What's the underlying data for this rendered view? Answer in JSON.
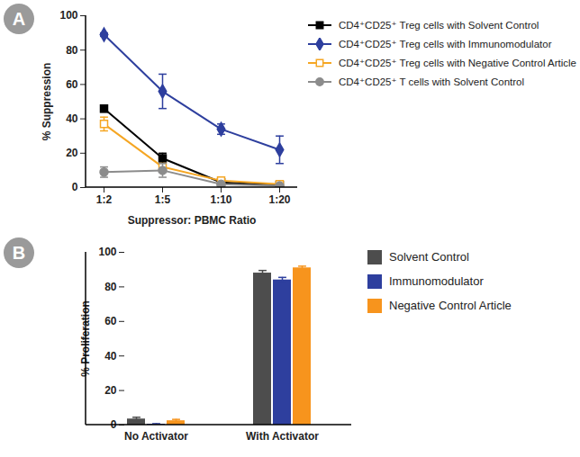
{
  "chart_data": [
    {
      "type": "line",
      "title": "A",
      "categories": [
        "1:2",
        "1:5",
        "1:10",
        "1:20"
      ],
      "xlabel": "Suppressor: PBMC Ratio",
      "ylabel": "% Suppression",
      "ylim": [
        0,
        100
      ],
      "yticks": [
        0,
        20,
        40,
        60,
        80,
        100
      ],
      "legend": "right",
      "series": [
        {
          "name": "CD4⁺CD25⁺ Treg cells with Solvent Control",
          "color": "#000000",
          "marker": "square",
          "values": [
            46,
            17,
            3,
            1.5
          ],
          "errors": [
            2,
            3,
            1,
            1
          ]
        },
        {
          "name": "CD4⁺CD25⁺ Treg cells with Immunomodulator",
          "color": "#2e3f9e",
          "marker": "diamond",
          "values": [
            89,
            56,
            34,
            22
          ],
          "errors": [
            1,
            10,
            3,
            8
          ]
        },
        {
          "name": "CD4⁺CD25⁺ Treg cells with Negative Control Article",
          "color": "#f5a623",
          "marker": "open_square",
          "values": [
            37,
            12,
            4,
            2
          ],
          "errors": [
            4,
            2,
            1,
            1
          ]
        },
        {
          "name": "CD4⁺CD25⁺ T cells with Solvent Control",
          "color": "#8c8c8c",
          "marker": "circle",
          "values": [
            9,
            10,
            2,
            1
          ],
          "errors": [
            3,
            4,
            1,
            0.5
          ]
        }
      ]
    },
    {
      "type": "bar",
      "title": "B",
      "categories": [
        "No Activator",
        "With Activator"
      ],
      "ylabel": "% Proliferation",
      "ylim": [
        0,
        100
      ],
      "yticks": [
        0,
        20,
        40,
        60,
        80,
        100
      ],
      "legend": "right",
      "series": [
        {
          "name": "Solvent Control",
          "color": "#4d4d4d",
          "values": [
            3.5,
            88
          ],
          "errors": [
            1,
            1.5
          ]
        },
        {
          "name": "Immunomodulator",
          "color": "#2e3f9e",
          "values": [
            0.5,
            84
          ],
          "errors": [
            0.3,
            1.5
          ]
        },
        {
          "name": "Negative Control Article",
          "color": "#f7941d",
          "values": [
            2.5,
            91
          ],
          "errors": [
            0.8,
            1
          ]
        }
      ]
    }
  ]
}
